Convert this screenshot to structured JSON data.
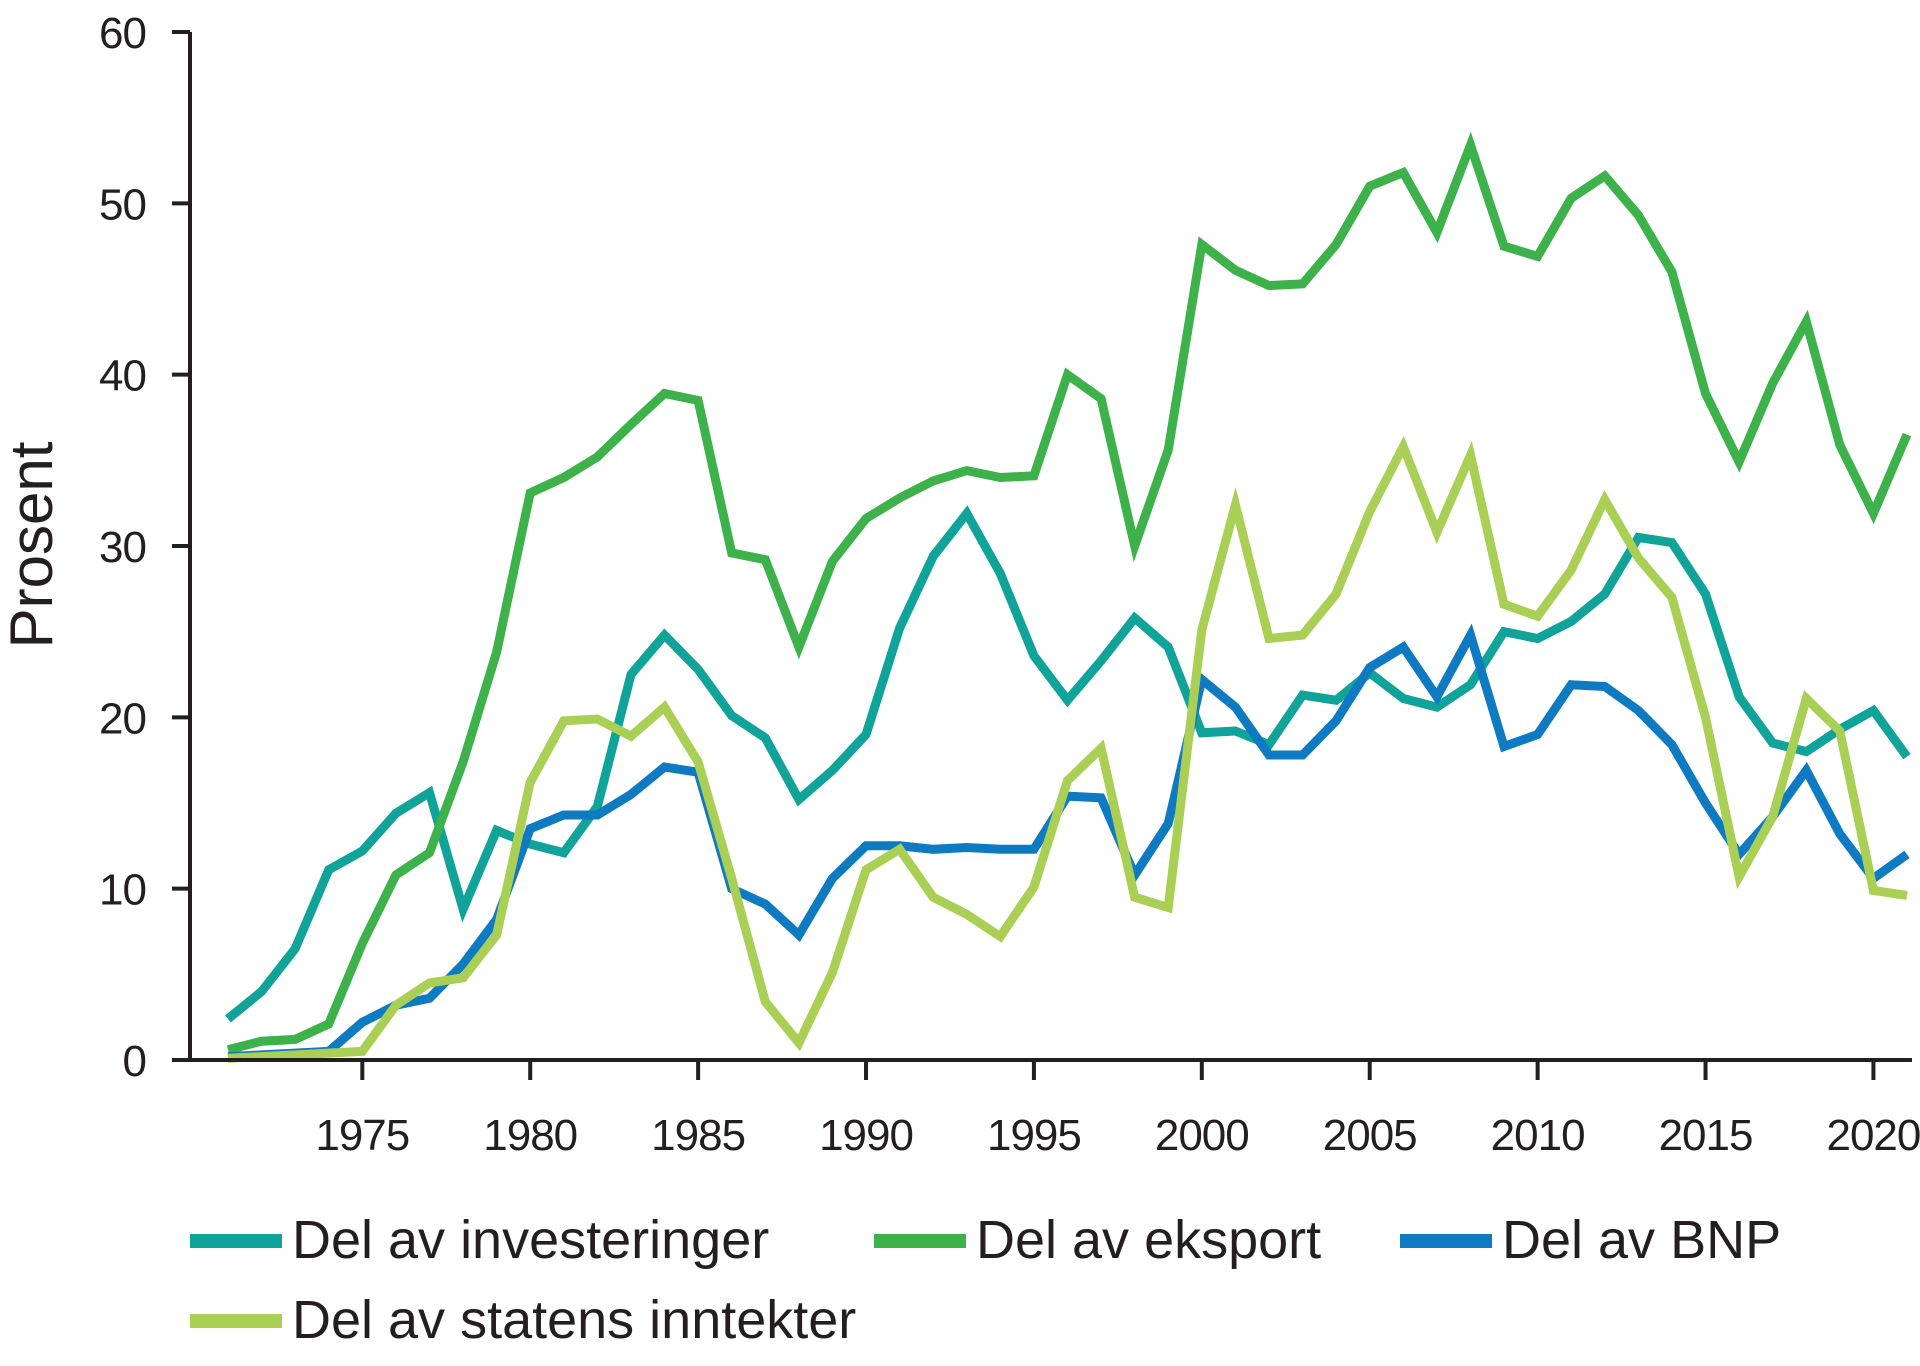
{
  "chart_data": {
    "type": "line",
    "title": "",
    "xlabel": "",
    "ylabel": "Prosent",
    "xlim": [
      1971,
      2021
    ],
    "ylim": [
      0,
      60
    ],
    "yticks": [
      0,
      10,
      20,
      30,
      40,
      50,
      60
    ],
    "xticks": [
      1975,
      1980,
      1985,
      1990,
      1995,
      2000,
      2005,
      2010,
      2015,
      2020
    ],
    "grid": false,
    "legend_position": "bottom",
    "x": [
      1971,
      1972,
      1973,
      1974,
      1975,
      1976,
      1977,
      1978,
      1979,
      1980,
      1981,
      1982,
      1983,
      1984,
      1985,
      1986,
      1987,
      1988,
      1989,
      1990,
      1991,
      1992,
      1993,
      1994,
      1995,
      1996,
      1997,
      1998,
      1999,
      2000,
      2001,
      2002,
      2003,
      2004,
      2005,
      2006,
      2007,
      2008,
      2009,
      2010,
      2011,
      2012,
      2013,
      2014,
      2015,
      2016,
      2017,
      2018,
      2019,
      2020,
      2021
    ],
    "series": [
      {
        "name": "Del av investeringer",
        "color": "#10a39a",
        "values": [
          2.4,
          4.0,
          6.5,
          11.1,
          12.2,
          14.4,
          15.6,
          8.8,
          13.4,
          12.6,
          12.1,
          14.8,
          22.5,
          24.8,
          22.8,
          20.1,
          18.8,
          15.2,
          16.9,
          19.0,
          25.2,
          29.4,
          31.9,
          28.4,
          23.6,
          21.0,
          23.3,
          25.8,
          24.1,
          19.1,
          19.2,
          18.4,
          21.3,
          21.0,
          22.6,
          21.1,
          20.6,
          21.9,
          25.0,
          24.6,
          25.6,
          27.2,
          30.5,
          30.2,
          27.2,
          21.2,
          18.5,
          18.0,
          19.3,
          20.4,
          17.7
        ]
      },
      {
        "name": "Del av eksport",
        "color": "#3db14a",
        "values": [
          0.6,
          1.1,
          1.2,
          2.1,
          6.8,
          10.8,
          12.1,
          17.4,
          23.8,
          33.1,
          34.0,
          35.2,
          37.1,
          38.9,
          38.5,
          29.6,
          29.2,
          24.1,
          29.1,
          31.6,
          32.8,
          33.8,
          34.4,
          34.0,
          34.1,
          40.0,
          38.6,
          30.0,
          35.6,
          47.6,
          46.1,
          45.2,
          45.3,
          47.6,
          51.0,
          51.8,
          48.3,
          53.4,
          47.5,
          46.9,
          50.3,
          51.6,
          49.3,
          46.0,
          38.9,
          34.9,
          39.5,
          43.1,
          35.9,
          31.9,
          36.5
        ]
      },
      {
        "name": "Del av BNP",
        "color": "#0e7ac2",
        "values": [
          0.2,
          0.3,
          0.4,
          0.5,
          2.2,
          3.2,
          3.6,
          5.6,
          8.2,
          13.5,
          14.3,
          14.3,
          15.5,
          17.1,
          16.8,
          10.0,
          9.1,
          7.3,
          10.6,
          12.5,
          12.5,
          12.3,
          12.4,
          12.3,
          12.3,
          15.4,
          15.3,
          10.8,
          13.8,
          22.2,
          20.6,
          17.8,
          17.8,
          19.8,
          22.9,
          24.1,
          21.2,
          24.8,
          18.3,
          19.0,
          21.9,
          21.8,
          20.4,
          18.4,
          15.0,
          12.0,
          14.2,
          16.9,
          13.2,
          10.6,
          12.0
        ]
      },
      {
        "name": "Del av statens inntekter",
        "color": "#a9cf54",
        "values": [
          0.1,
          0.2,
          0.3,
          0.4,
          0.5,
          3.2,
          4.5,
          4.8,
          7.3,
          16.2,
          19.8,
          19.9,
          18.9,
          20.6,
          17.4,
          10.6,
          3.4,
          1.0,
          5.1,
          11.1,
          12.3,
          9.5,
          8.5,
          7.2,
          10.1,
          16.3,
          18.2,
          9.5,
          8.9,
          25.1,
          32.4,
          24.6,
          24.8,
          27.2,
          32.0,
          35.8,
          30.8,
          35.3,
          26.6,
          25.9,
          28.6,
          32.7,
          29.3,
          27.0,
          20.0,
          10.7,
          14.2,
          21.1,
          19.2,
          9.9,
          9.6
        ]
      }
    ]
  }
}
